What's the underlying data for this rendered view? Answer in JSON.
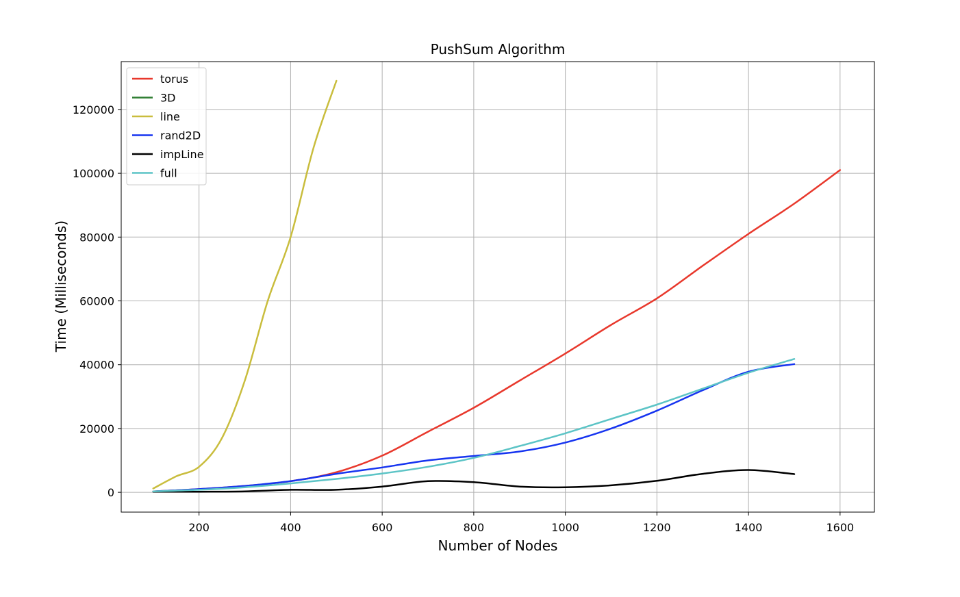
{
  "chart_data": {
    "type": "line",
    "title": "PushSum Algorithm",
    "xlabel": "Number of Nodes",
    "ylabel": "Time (Milliseconds)",
    "xlim": [
      30,
      1675
    ],
    "ylim": [
      -6200,
      135000
    ],
    "xticks": [
      200,
      400,
      600,
      800,
      1000,
      1200,
      1400,
      1600
    ],
    "yticks": [
      0,
      20000,
      40000,
      60000,
      80000,
      100000,
      120000
    ],
    "grid": true,
    "legend_position": "top-left",
    "series": [
      {
        "name": "torus",
        "color": "#e8382c",
        "x": [
          100,
          200,
          300,
          400,
          500,
          600,
          700,
          800,
          900,
          1000,
          1100,
          1200,
          1300,
          1400,
          1500,
          1600
        ],
        "y": [
          300,
          1000,
          2000,
          3500,
          6300,
          11500,
          19000,
          26500,
          35000,
          43500,
          52500,
          60800,
          71000,
          81000,
          90500,
          101000
        ]
      },
      {
        "name": "3D",
        "color": "#2e7d32",
        "x": [],
        "y": []
      },
      {
        "name": "line",
        "color": "#c9bd3d",
        "x": [
          100,
          150,
          200,
          250,
          300,
          350,
          400,
          450,
          500
        ],
        "y": [
          1200,
          5000,
          8000,
          17000,
          35000,
          60000,
          80000,
          108000,
          129000
        ]
      },
      {
        "name": "rand2D",
        "color": "#1634f0",
        "x": [
          100,
          200,
          300,
          400,
          500,
          600,
          700,
          800,
          900,
          1000,
          1100,
          1200,
          1300,
          1400,
          1500
        ],
        "y": [
          300,
          1000,
          2000,
          3500,
          5800,
          7800,
          10000,
          11400,
          12800,
          15600,
          20000,
          25600,
          32000,
          37800,
          40200
        ]
      },
      {
        "name": "impLine",
        "color": "#000000",
        "x": [
          100,
          200,
          300,
          400,
          500,
          600,
          700,
          800,
          900,
          1000,
          1100,
          1200,
          1300,
          1400,
          1500
        ],
        "y": [
          200,
          200,
          300,
          800,
          800,
          1800,
          3500,
          3200,
          1800,
          1600,
          2200,
          3600,
          5800,
          7000,
          5700
        ]
      },
      {
        "name": "full",
        "color": "#5cc4c6",
        "x": [
          100,
          200,
          300,
          400,
          500,
          600,
          700,
          800,
          900,
          1000,
          1100,
          1200,
          1300,
          1400,
          1500
        ],
        "y": [
          300,
          800,
          1600,
          2800,
          4200,
          5900,
          8000,
          10800,
          14500,
          18500,
          23000,
          27500,
          32500,
          37500,
          41800
        ]
      }
    ]
  }
}
